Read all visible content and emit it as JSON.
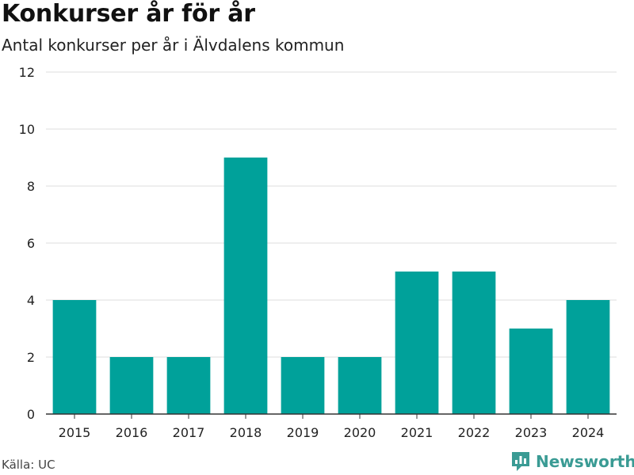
{
  "header": {
    "title": "Konkurser år för år",
    "subtitle": "Antal konkurser per år i Älvdalens kommun"
  },
  "footer": {
    "source": "Källa: UC",
    "brand": "Newsworthy",
    "brand_icon": "newsworthy-logo-icon",
    "brand_color": "#3a9b94"
  },
  "chart_data": {
    "type": "bar",
    "categories": [
      "2015",
      "2016",
      "2017",
      "2018",
      "2019",
      "2020",
      "2021",
      "2022",
      "2023",
      "2024"
    ],
    "values": [
      4,
      2,
      2,
      9,
      2,
      2,
      5,
      5,
      3,
      4
    ],
    "title": "Konkurser år för år",
    "subtitle": "Antal konkurser per år i Älvdalens kommun",
    "xlabel": "",
    "ylabel": "",
    "ylim": [
      0,
      12
    ],
    "yticks": [
      0,
      2,
      4,
      6,
      8,
      10,
      12
    ],
    "grid": true,
    "bar_color": "#00a19a"
  }
}
